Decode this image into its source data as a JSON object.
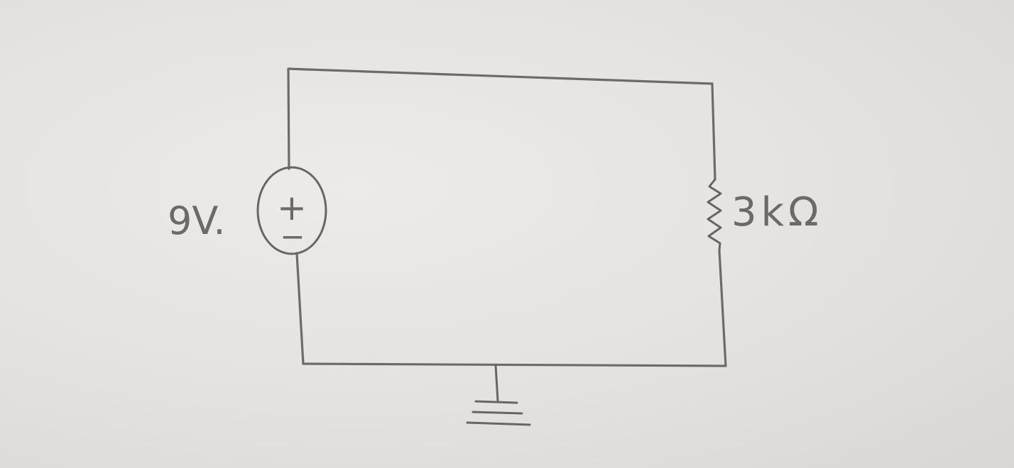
{
  "diagram": {
    "source": {
      "label": "9V.",
      "plus_symbol": "+",
      "minus_symbol": "−"
    },
    "resistor": {
      "label": "3kΩ"
    },
    "colors": {
      "paper": "#e6e4e2",
      "ink": "#6b6b6b"
    }
  }
}
